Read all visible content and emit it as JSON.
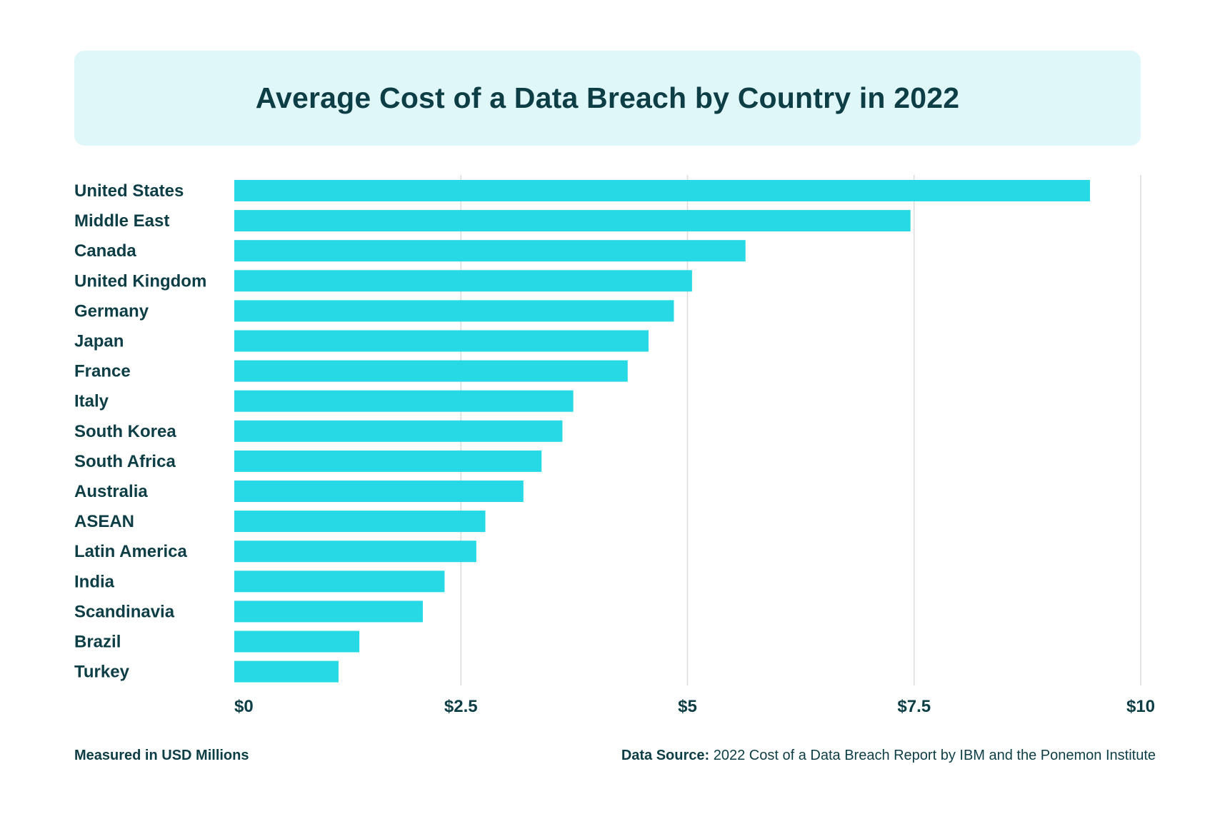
{
  "chart_data": {
    "type": "bar",
    "orientation": "horizontal",
    "title": "Average Cost of a Data Breach by Country in 2022",
    "categories": [
      "United States",
      "Middle East",
      "Canada",
      "United Kingdom",
      "Germany",
      "Japan",
      "France",
      "Italy",
      "South Korea",
      "South Africa",
      "Australia",
      "ASEAN",
      "Latin America",
      "India",
      "Scandinavia",
      "Brazil",
      "Turkey"
    ],
    "values": [
      9.44,
      7.46,
      5.64,
      5.05,
      4.85,
      4.57,
      4.34,
      3.74,
      3.62,
      3.39,
      3.19,
      2.77,
      2.67,
      2.32,
      2.08,
      1.38,
      1.15
    ],
    "xlim": [
      0,
      10
    ],
    "xticks": [
      0,
      2.5,
      5,
      7.5,
      10
    ],
    "xtick_labels": [
      "$0",
      "$2.5",
      "$5",
      "$7.5",
      "$10"
    ],
    "grid": true,
    "bar_color": "#27d9e4",
    "grid_color": "#dcdcdc",
    "text_color": "#0d3d45"
  },
  "footer": {
    "unit_note": "Measured in USD Millions",
    "source_label": "Data Source:",
    "source_text": " 2022 Cost of a Data Breach Report by IBM and the Ponemon Institute"
  }
}
